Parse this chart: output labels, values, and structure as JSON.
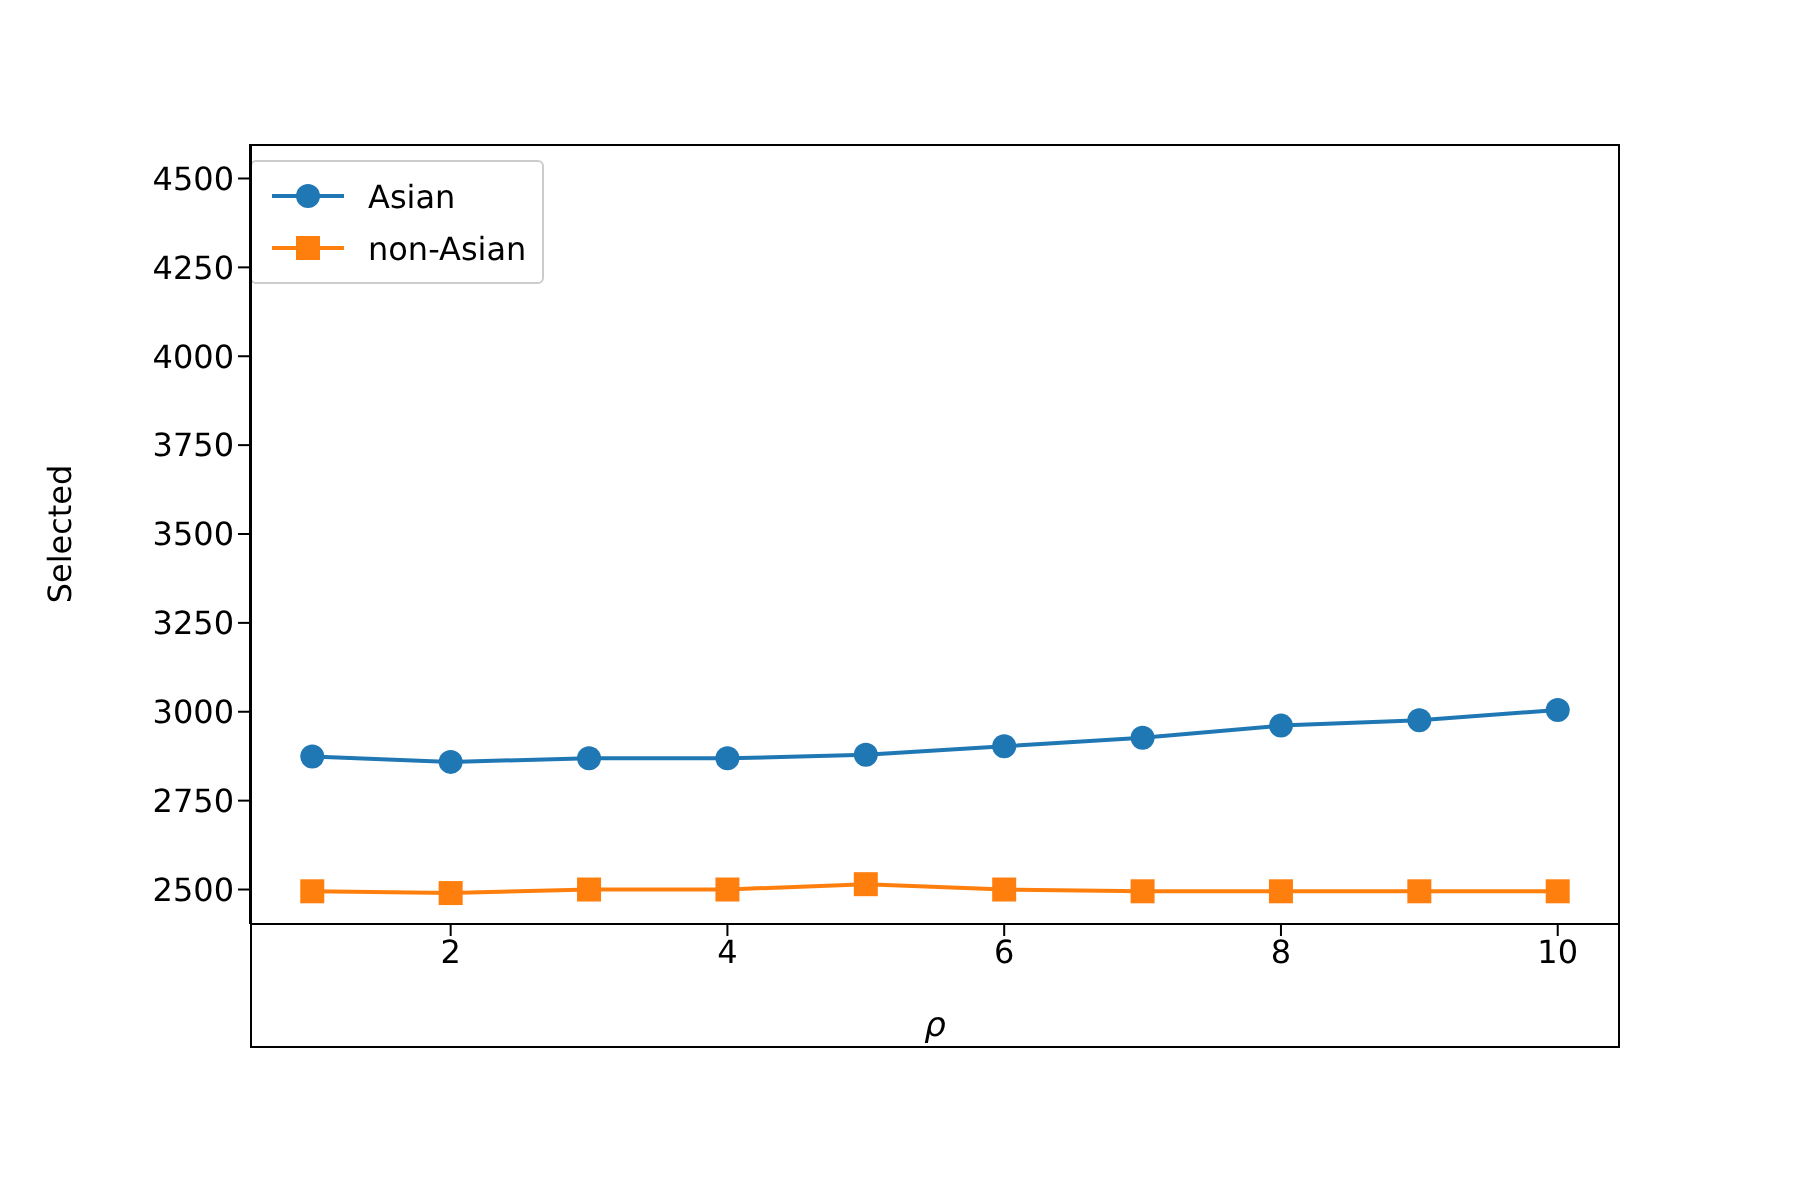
{
  "chart_data": {
    "type": "line",
    "xlabel": "ρ",
    "ylabel": "Selected",
    "x": [
      1,
      2,
      3,
      4,
      5,
      6,
      7,
      8,
      9,
      10
    ],
    "series": [
      {
        "name": "Asian",
        "color": "#1f77b4",
        "marker": "circle",
        "values": [
          2874,
          2859,
          2869,
          2869,
          2879,
          2903,
          2927,
          2961,
          2976,
          3005
        ]
      },
      {
        "name": "non-Asian",
        "color": "#ff7f0e",
        "marker": "square",
        "values": [
          2495,
          2490,
          2500,
          2500,
          2515,
          2500,
          2495,
          2495,
          2495,
          2495
        ]
      }
    ],
    "xlim": [
      0.55,
      10.45
    ],
    "xticks": [
      2,
      4,
      6,
      8,
      10
    ],
    "ylim": [
      2403,
      4597
    ],
    "yticks": [
      2500,
      2750,
      3000,
      3250,
      3500,
      3750,
      4000,
      4250,
      4500
    ],
    "grid": false,
    "legend": "top left",
    "line_style": "solid"
  }
}
